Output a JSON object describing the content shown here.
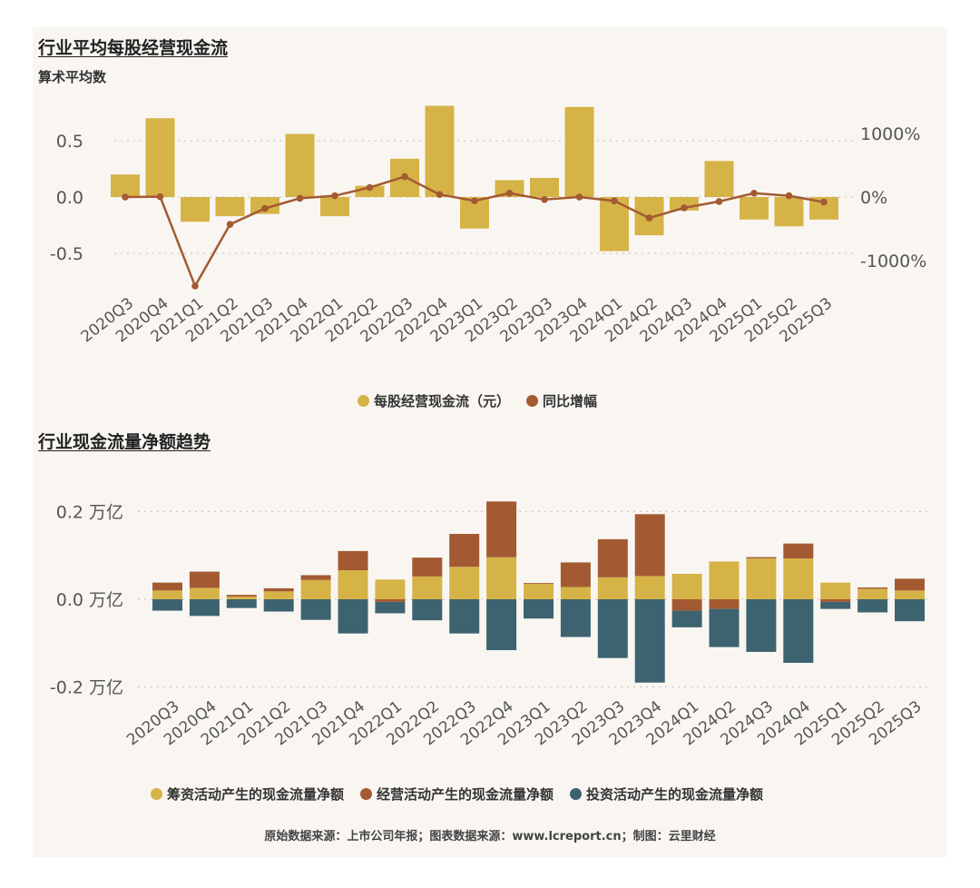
{
  "chart1": {
    "title": "行业平均每股经营现金流",
    "subtitle": "算术平均数"
  },
  "chart2": {
    "title": "行业现金流量净额趋势"
  },
  "legend1": [
    {
      "label": "每股经营现金流（元）",
      "color": "#d6b347"
    },
    {
      "label": "同比增幅",
      "color": "#a35a33"
    }
  ],
  "legend2": [
    {
      "label": "筹资活动产生的现金流量净额",
      "color": "#d6b347"
    },
    {
      "label": "经营活动产生的现金流量净额",
      "color": "#a35a33"
    },
    {
      "label": "投资活动产生的现金流量净额",
      "color": "#3e6370"
    }
  ],
  "footer": "原始数据来源：上市公司年报；图表数据来源：www.lcreport.cn；制图：云里财经",
  "colors": {
    "gold": "#d6b347",
    "rust": "#a35a33",
    "teal": "#3e6370"
  },
  "chart_data": [
    {
      "type": "bar",
      "title": "行业平均每股经营现金流",
      "subtitle": "算术平均数",
      "categories": [
        "2020Q3",
        "2020Q4",
        "2021Q1",
        "2021Q2",
        "2021Q3",
        "2021Q4",
        "2022Q1",
        "2022Q2",
        "2022Q3",
        "2022Q4",
        "2023Q1",
        "2023Q2",
        "2023Q3",
        "2023Q4",
        "2024Q1",
        "2024Q2",
        "2024Q3",
        "2024Q4",
        "2025Q1",
        "2025Q2",
        "2025Q3"
      ],
      "series": [
        {
          "name": "每股经营现金流（元）",
          "kind": "bar",
          "axis": "left",
          "values": [
            0.2,
            0.7,
            -0.22,
            -0.17,
            -0.15,
            0.56,
            -0.17,
            0.1,
            0.34,
            0.81,
            -0.28,
            0.15,
            0.17,
            0.8,
            -0.48,
            -0.34,
            -0.12,
            0.32,
            -0.2,
            -0.26,
            -0.2
          ]
        },
        {
          "name": "同比增幅",
          "kind": "line",
          "axis": "right",
          "unit": "%",
          "values": [
            0,
            5,
            -1400,
            -430,
            -180,
            -20,
            20,
            150,
            320,
            40,
            -60,
            60,
            -40,
            0,
            -60,
            -330,
            -170,
            -70,
            60,
            20,
            -80
          ]
        }
      ],
      "y_left": {
        "ticks": [
          0.5,
          0.0,
          -0.5
        ],
        "tick_labels": [
          "0.5",
          "0.0",
          "-0.5"
        ],
        "ylim": [
          -0.75,
          0.9
        ]
      },
      "y_right": {
        "ticks": [
          1000,
          0,
          -1000
        ],
        "tick_labels": [
          "1000%",
          "0%",
          "-1000%"
        ],
        "ylim": [
          -1550,
          1260
        ]
      },
      "grid": "dotted"
    },
    {
      "type": "bar",
      "stacked": true,
      "title": "行业现金流量净额趋势",
      "categories": [
        "2020Q3",
        "2020Q4",
        "2021Q1",
        "2021Q2",
        "2021Q3",
        "2021Q4",
        "2022Q1",
        "2022Q2",
        "2022Q3",
        "2022Q4",
        "2023Q1",
        "2023Q2",
        "2023Q3",
        "2023Q4",
        "2024Q1",
        "2024Q2",
        "2024Q3",
        "2024Q4",
        "2025Q1",
        "2025Q2",
        "2025Q3"
      ],
      "series": [
        {
          "name": "筹资活动产生的现金流量净额",
          "values": [
            0.02,
            0.026,
            0.006,
            0.018,
            0.044,
            0.066,
            0.045,
            0.052,
            0.074,
            0.096,
            0.035,
            0.028,
            0.05,
            0.053,
            0.058,
            0.086,
            0.093,
            0.093,
            0.038,
            0.024,
            0.02
          ]
        },
        {
          "name": "经营活动产生的现金流量净额",
          "values": [
            0.018,
            0.037,
            0.004,
            0.007,
            0.011,
            0.044,
            -0.006,
            0.043,
            0.075,
            0.127,
            0.002,
            0.056,
            0.087,
            0.141,
            -0.026,
            -0.022,
            0.003,
            0.034,
            -0.006,
            0.003,
            0.027
          ]
        },
        {
          "name": "投资活动产生的现金流量净额",
          "values": [
            -0.026,
            -0.038,
            -0.02,
            -0.028,
            -0.047,
            -0.078,
            -0.026,
            -0.048,
            -0.078,
            -0.116,
            -0.044,
            -0.086,
            -0.134,
            -0.19,
            -0.038,
            -0.087,
            -0.12,
            -0.145,
            -0.016,
            -0.03,
            -0.05
          ]
        }
      ],
      "y": {
        "ticks": [
          0.2,
          0.0,
          -0.2
        ],
        "tick_labels": [
          "0.2 万亿",
          "0.0 万亿",
          "-0.2 万亿"
        ],
        "ylim": [
          -0.22,
          0.26
        ]
      },
      "grid": "dotted"
    }
  ]
}
